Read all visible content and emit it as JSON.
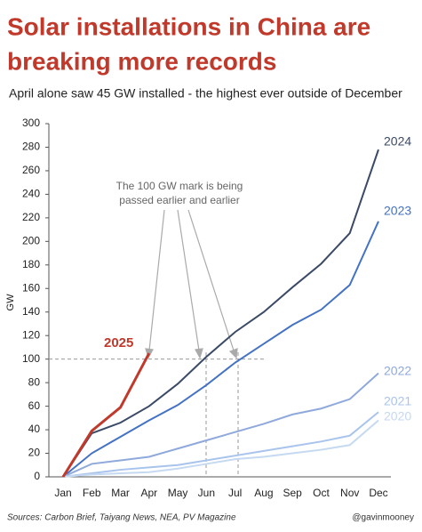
{
  "chart_data": {
    "type": "line",
    "title": "Solar installations in China are breaking more records",
    "title_lines": [
      "Solar installations in China are",
      "breaking more records"
    ],
    "subtitle": "April alone saw 45 GW installed - the highest ever outside of December",
    "y_label": "GW",
    "annotation": [
      "The 100 GW mark is being",
      "passed earlier and earlier"
    ],
    "source": "Sources: Carbon Brief, Taiyang News, NEA, PV Magazine",
    "credit": "@gavinmooney",
    "categories": [
      "Jan",
      "Feb",
      "Mar",
      "Apr",
      "May",
      "Jun",
      "Jul",
      "Aug",
      "Sep",
      "Oct",
      "Nov",
      "Dec"
    ],
    "ylim": [
      0,
      300
    ],
    "yticks": [
      0,
      20,
      40,
      60,
      80,
      100,
      120,
      140,
      160,
      180,
      200,
      220,
      240,
      260,
      280,
      300
    ],
    "hline": 100,
    "series": [
      {
        "name": "2024",
        "color": "#3b4a66",
        "values": [
          0,
          37,
          46,
          60,
          79,
          102,
          123,
          140,
          161,
          181,
          207,
          278
        ]
      },
      {
        "name": "2023",
        "color": "#4472c4",
        "values": [
          0,
          20,
          34,
          48,
          61,
          78,
          97,
          113,
          129,
          142,
          163,
          217
        ]
      },
      {
        "name": "2022",
        "color": "#8fa9dc",
        "values": [
          0,
          11,
          14,
          17,
          24,
          31,
          38,
          45,
          53,
          58,
          66,
          88
        ]
      },
      {
        "name": "2021",
        "color": "#a9c4ec",
        "values": [
          0,
          3,
          6,
          8,
          10,
          14,
          18,
          22,
          26,
          30,
          35,
          55
        ]
      },
      {
        "name": "2020",
        "color": "#c5d9f1",
        "values": [
          0,
          2,
          3,
          4,
          7,
          11,
          15,
          17,
          20,
          23,
          27,
          48
        ]
      },
      {
        "name": "2025",
        "color": "#c0392b",
        "values": [
          0,
          39,
          59,
          105,
          null,
          null,
          null,
          null,
          null,
          null,
          null,
          null
        ]
      }
    ]
  }
}
